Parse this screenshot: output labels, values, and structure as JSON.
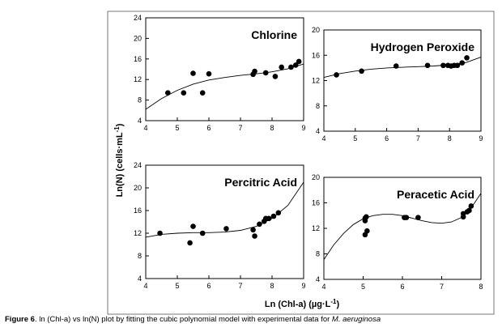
{
  "figure": {
    "ylabel": "Ln(N) (cells·mL",
    "ylabel_sup": "-1",
    "ylabel_close": ")",
    "xlabel": "Ln (Chl-a) (µg·L",
    "xlabel_sup": "-1",
    "xlabel_close": ")"
  },
  "caption": {
    "label": "Figure 6",
    "text": ". ln (Chl-a) vs ln(N) plot by fitting the cubic polynomial model with experimental data for ",
    "organism": "M. aeruginosa"
  },
  "chart_data": [
    {
      "type": "scatter",
      "title": "Chlorine",
      "xlim": [
        4,
        9
      ],
      "ylim": [
        4,
        24
      ],
      "xticks": [
        4,
        5,
        6,
        7,
        8,
        9
      ],
      "yticks": [
        4,
        8,
        12,
        16,
        20,
        24
      ],
      "points": [
        [
          4.7,
          9.4
        ],
        [
          5.2,
          9.4
        ],
        [
          5.5,
          13.2
        ],
        [
          5.8,
          9.4
        ],
        [
          6.0,
          13.1
        ],
        [
          7.4,
          13.0
        ],
        [
          7.45,
          13.6
        ],
        [
          7.8,
          13.3
        ],
        [
          8.1,
          12.6
        ],
        [
          8.3,
          14.4
        ],
        [
          8.6,
          14.4
        ],
        [
          8.75,
          14.8
        ],
        [
          8.85,
          15.5
        ]
      ],
      "fit": [
        [
          4.0,
          6.2
        ],
        [
          4.5,
          8.3
        ],
        [
          5.0,
          9.9
        ],
        [
          5.5,
          11.1
        ],
        [
          6.0,
          11.9
        ],
        [
          6.5,
          12.4
        ],
        [
          7.0,
          12.8
        ],
        [
          7.5,
          13.1
        ],
        [
          8.0,
          13.5
        ],
        [
          8.5,
          14.1
        ],
        [
          9.0,
          15.0
        ]
      ]
    },
    {
      "type": "scatter",
      "title": "Hydrogen Peroxide",
      "xlim": [
        4,
        9
      ],
      "ylim": [
        4,
        20
      ],
      "xticks": [
        4,
        5,
        6,
        7,
        8,
        9
      ],
      "yticks": [
        4,
        8,
        12,
        16,
        20
      ],
      "points": [
        [
          4.4,
          12.9
        ],
        [
          5.2,
          13.5
        ],
        [
          6.3,
          14.3
        ],
        [
          7.3,
          14.4
        ],
        [
          7.8,
          14.4
        ],
        [
          7.95,
          14.4
        ],
        [
          8.05,
          14.3
        ],
        [
          8.15,
          14.4
        ],
        [
          8.25,
          14.4
        ],
        [
          8.4,
          14.8
        ],
        [
          8.55,
          15.6
        ]
      ],
      "fit": [
        [
          4.0,
          12.5
        ],
        [
          4.5,
          13.1
        ],
        [
          5.0,
          13.5
        ],
        [
          5.5,
          13.8
        ],
        [
          6.0,
          14.0
        ],
        [
          6.5,
          14.1
        ],
        [
          7.0,
          14.2
        ],
        [
          7.5,
          14.3
        ],
        [
          8.0,
          14.5
        ],
        [
          8.5,
          14.8
        ],
        [
          9.0,
          15.7
        ]
      ]
    },
    {
      "type": "scatter",
      "title": "Percitric Acid",
      "xlim": [
        4,
        9
      ],
      "ylim": [
        4,
        24
      ],
      "xticks": [
        4,
        5,
        6,
        7,
        8,
        9
      ],
      "yticks": [
        4,
        8,
        12,
        16,
        20,
        24
      ],
      "points": [
        [
          4.45,
          12.0
        ],
        [
          5.4,
          10.3
        ],
        [
          5.5,
          13.2
        ],
        [
          5.8,
          12.0
        ],
        [
          6.55,
          12.8
        ],
        [
          7.4,
          12.6
        ],
        [
          7.45,
          11.5
        ],
        [
          7.6,
          13.6
        ],
        [
          7.75,
          14.1
        ],
        [
          7.8,
          14.6
        ],
        [
          7.9,
          14.6
        ],
        [
          8.05,
          15.0
        ],
        [
          8.2,
          15.6
        ]
      ],
      "fit": [
        [
          4.0,
          11.3
        ],
        [
          4.5,
          11.8
        ],
        [
          5.0,
          12.0
        ],
        [
          5.5,
          12.1
        ],
        [
          6.0,
          12.1
        ],
        [
          6.5,
          12.2
        ],
        [
          7.0,
          12.5
        ],
        [
          7.5,
          13.2
        ],
        [
          8.0,
          14.6
        ],
        [
          8.5,
          16.9
        ],
        [
          9.0,
          21.0
        ]
      ]
    },
    {
      "type": "scatter",
      "title": "Peracetic Acid",
      "xlim": [
        4,
        8
      ],
      "ylim": [
        4,
        20
      ],
      "xticks": [
        4,
        5,
        6,
        7,
        8
      ],
      "yticks": [
        4,
        8,
        12,
        16,
        20
      ],
      "points": [
        [
          5.05,
          13.6
        ],
        [
          5.05,
          13.2
        ],
        [
          5.08,
          13.8
        ],
        [
          5.1,
          11.6
        ],
        [
          5.05,
          11.0
        ],
        [
          6.05,
          13.7
        ],
        [
          6.1,
          13.7
        ],
        [
          6.4,
          13.7
        ],
        [
          7.55,
          14.3
        ],
        [
          7.55,
          13.8
        ],
        [
          7.65,
          14.6
        ],
        [
          7.7,
          14.8
        ],
        [
          7.75,
          15.5
        ]
      ],
      "fit": [
        [
          4.0,
          7.1
        ],
        [
          4.25,
          9.4
        ],
        [
          4.5,
          11.2
        ],
        [
          4.75,
          12.6
        ],
        [
          5.0,
          13.5
        ],
        [
          5.25,
          14.0
        ],
        [
          5.5,
          14.2
        ],
        [
          5.75,
          14.2
        ],
        [
          6.0,
          14.0
        ],
        [
          6.25,
          13.6
        ],
        [
          6.5,
          13.2
        ],
        [
          6.75,
          12.9
        ],
        [
          7.0,
          12.8
        ],
        [
          7.25,
          13.0
        ],
        [
          7.5,
          13.7
        ],
        [
          7.75,
          15.2
        ],
        [
          8.0,
          17.5
        ]
      ]
    }
  ]
}
